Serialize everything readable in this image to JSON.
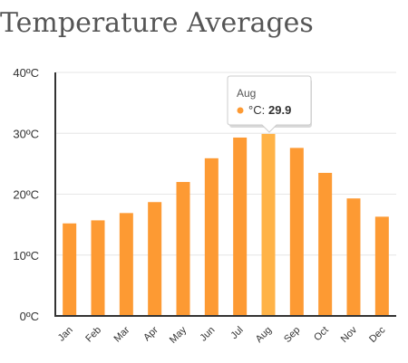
{
  "chart_data": {
    "type": "bar",
    "title": "Temperature Averages",
    "series_name": "°C",
    "categories": [
      "Jan",
      "Feb",
      "Mar",
      "Apr",
      "May",
      "Jun",
      "Jul",
      "Aug",
      "Sep",
      "Oct",
      "Nov",
      "Dec"
    ],
    "values": [
      15.2,
      15.7,
      16.9,
      18.7,
      22.0,
      25.9,
      29.3,
      29.9,
      27.6,
      23.5,
      19.3,
      16.3
    ],
    "ylim": [
      0,
      40
    ],
    "y_ticks": [
      0,
      10,
      20,
      30,
      40
    ],
    "y_tick_labels": [
      "0ºC",
      "10ºC",
      "20ºC",
      "30ºC",
      "40ºC"
    ],
    "grid": true,
    "legend": "none",
    "bar_color": "#FD9A33",
    "highlight_color": "#FFB347",
    "highlighted_index": 7,
    "tooltip": {
      "month": "Aug",
      "series": "°C:",
      "value": "29.9"
    }
  }
}
